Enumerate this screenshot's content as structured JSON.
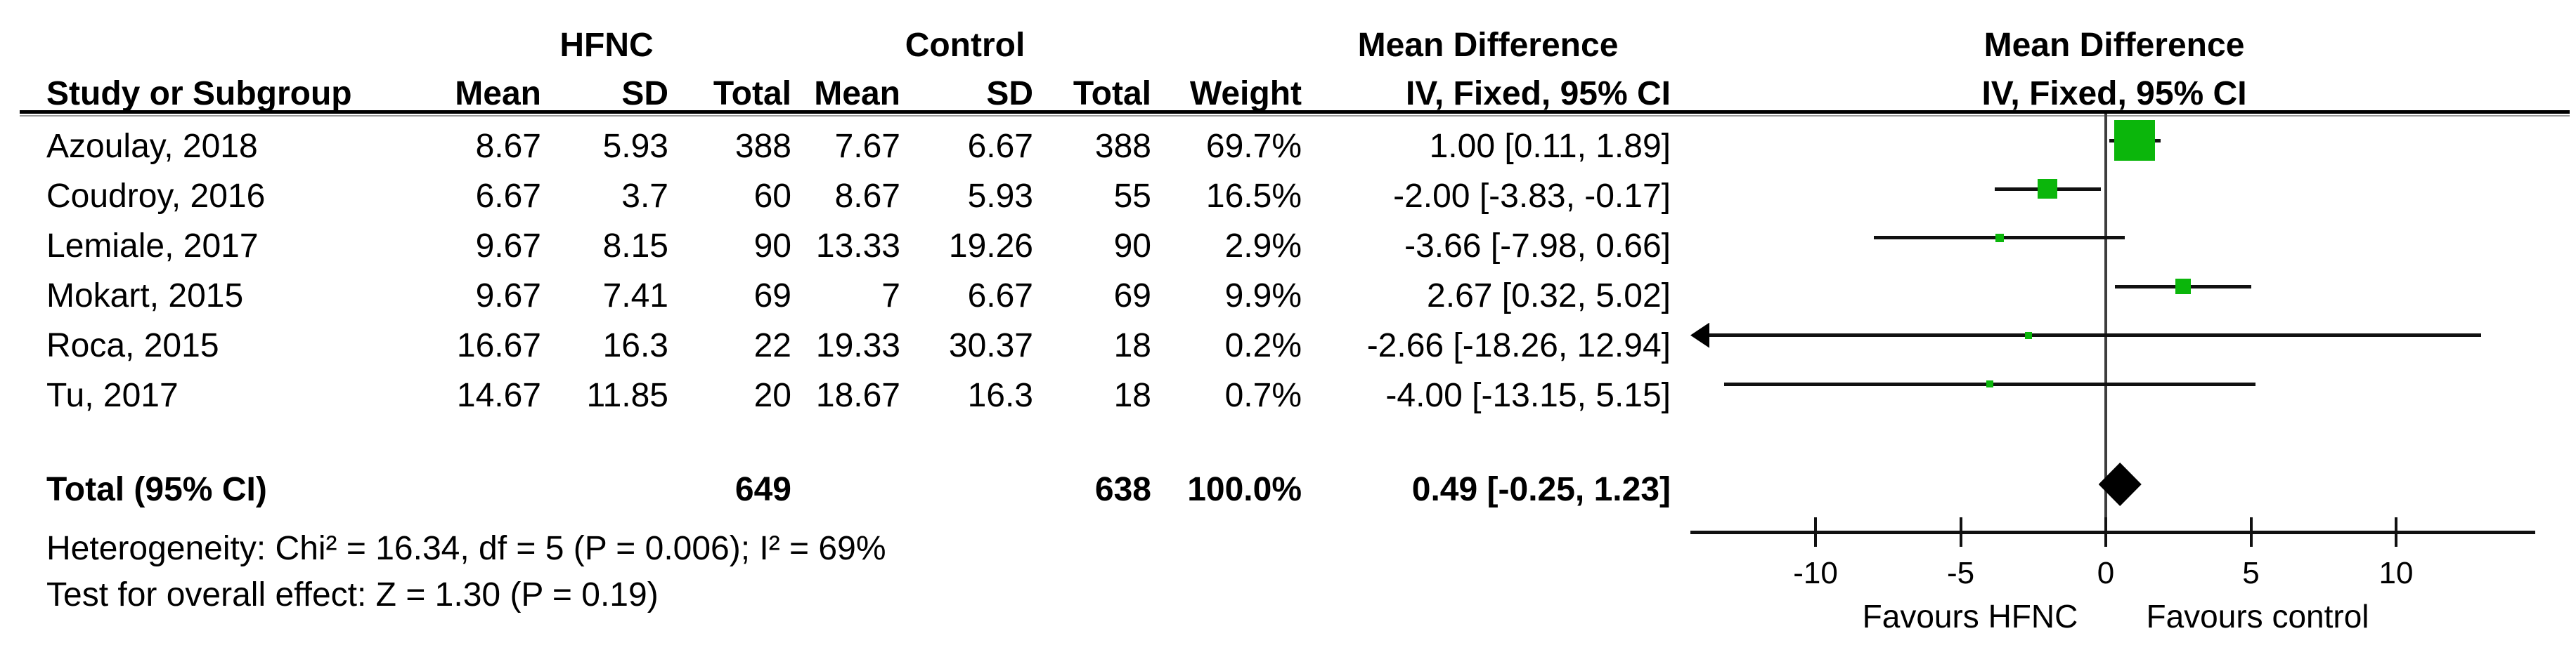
{
  "figure": {
    "headers": {
      "group1": "HFNC",
      "group2": "Control",
      "study": "Study or Subgroup",
      "mean": "Mean",
      "sd": "SD",
      "total": "Total",
      "weight": "Weight",
      "md_title": "Mean Difference",
      "md_subtitle": "IV, Fixed, 95% CI"
    },
    "rows": [
      {
        "study": "Azoulay, 2018",
        "hfnc_mean": "8.67",
        "hfnc_sd": "5.93",
        "hfnc_total": "388",
        "ctrl_mean": "7.67",
        "ctrl_sd": "6.67",
        "ctrl_total": "388",
        "weight": "69.7%",
        "ci_text": "1.00 [0.11, 1.89]"
      },
      {
        "study": "Coudroy, 2016",
        "hfnc_mean": "6.67",
        "hfnc_sd": "3.7",
        "hfnc_total": "60",
        "ctrl_mean": "8.67",
        "ctrl_sd": "5.93",
        "ctrl_total": "55",
        "weight": "16.5%",
        "ci_text": "-2.00 [-3.83, -0.17]"
      },
      {
        "study": "Lemiale, 2017",
        "hfnc_mean": "9.67",
        "hfnc_sd": "8.15",
        "hfnc_total": "90",
        "ctrl_mean": "13.33",
        "ctrl_sd": "19.26",
        "ctrl_total": "90",
        "weight": "2.9%",
        "ci_text": "-3.66 [-7.98, 0.66]"
      },
      {
        "study": "Mokart, 2015",
        "hfnc_mean": "9.67",
        "hfnc_sd": "7.41",
        "hfnc_total": "69",
        "ctrl_mean": "7",
        "ctrl_sd": "6.67",
        "ctrl_total": "69",
        "weight": "9.9%",
        "ci_text": "2.67 [0.32, 5.02]"
      },
      {
        "study": "Roca, 2015",
        "hfnc_mean": "16.67",
        "hfnc_sd": "16.3",
        "hfnc_total": "22",
        "ctrl_mean": "19.33",
        "ctrl_sd": "30.37",
        "ctrl_total": "18",
        "weight": "0.2%",
        "ci_text": "-2.66 [-18.26, 12.94]"
      },
      {
        "study": "Tu, 2017",
        "hfnc_mean": "14.67",
        "hfnc_sd": "11.85",
        "hfnc_total": "20",
        "ctrl_mean": "18.67",
        "ctrl_sd": "16.3",
        "ctrl_total": "18",
        "weight": "0.7%",
        "ci_text": "-4.00 [-13.15, 5.15]"
      }
    ],
    "total_row": {
      "label": "Total (95% CI)",
      "hfnc_total": "649",
      "ctrl_total": "638",
      "weight": "100.0%",
      "ci_text": "0.49 [-0.25, 1.23]"
    },
    "footnotes": {
      "heterogeneity": "Heterogeneity: Chi² = 16.34, df = 5 (P = 0.006); I² = 69%",
      "overall_effect": "Test for overall effect: Z = 1.30 (P = 0.19)"
    },
    "axis": {
      "left_label": "Favours HFNC",
      "right_label": "Favours control"
    }
  },
  "chart_data": {
    "type": "forest",
    "effect_measure": "Mean Difference, IV, Fixed, 95% CI",
    "model": "Fixed",
    "marker_color": "#0BB60B",
    "studies": [
      {
        "name": "Azoulay, 2018",
        "md": 1.0,
        "ci_low": 0.11,
        "ci_high": 1.89,
        "weight_pct": 69.7
      },
      {
        "name": "Coudroy, 2016",
        "md": -2.0,
        "ci_low": -3.83,
        "ci_high": -0.17,
        "weight_pct": 16.5
      },
      {
        "name": "Lemiale, 2017",
        "md": -3.66,
        "ci_low": -7.98,
        "ci_high": 0.66,
        "weight_pct": 2.9
      },
      {
        "name": "Mokart, 2015",
        "md": 2.67,
        "ci_low": 0.32,
        "ci_high": 5.02,
        "weight_pct": 9.9
      },
      {
        "name": "Roca, 2015",
        "md": -2.66,
        "ci_low": -18.26,
        "ci_high": 12.94,
        "weight_pct": 0.2
      },
      {
        "name": "Tu, 2017",
        "md": -4.0,
        "ci_low": -13.15,
        "ci_high": 5.15,
        "weight_pct": 0.7
      }
    ],
    "total": {
      "label": "Total (95% CI)",
      "md": 0.49,
      "ci_low": -0.25,
      "ci_high": 1.23,
      "weight_pct": 100.0
    },
    "axis": {
      "ticks": [
        -10,
        -5,
        0,
        5,
        10
      ],
      "range": [
        -14.31,
        14.79
      ],
      "left_label": "Favours HFNC",
      "right_label": "Favours control"
    }
  }
}
